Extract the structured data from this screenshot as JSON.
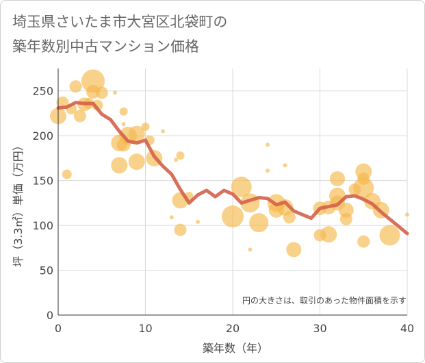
{
  "chart_data": {
    "type": "scatter",
    "title_line1": "埼玉県さいたま市大宮区北袋町の",
    "title_line2": "築年数別中古マンション価格",
    "xlabel": "築年数（年）",
    "ylabel": "坪（3.3㎡）単価（万円）",
    "note": "円の大きさは、取引のあった物件面積を示す",
    "xlim": [
      0,
      40
    ],
    "ylim": [
      0,
      275
    ],
    "x_ticks": [
      0,
      10,
      20,
      30,
      40
    ],
    "y_ticks": [
      0,
      50,
      100,
      150,
      200,
      250
    ],
    "grid": true,
    "colors": {
      "bubble": "#f5b94d",
      "line": "#d4604a"
    },
    "bubbles": [
      {
        "x": 0,
        "y": 222,
        "s": 12
      },
      {
        "x": 0.5,
        "y": 237,
        "s": 9
      },
      {
        "x": 1,
        "y": 157,
        "s": 7
      },
      {
        "x": 1.5,
        "y": 230,
        "s": 8
      },
      {
        "x": 2,
        "y": 255,
        "s": 9
      },
      {
        "x": 2.5,
        "y": 222,
        "s": 9
      },
      {
        "x": 3,
        "y": 235,
        "s": 10
      },
      {
        "x": 3.5,
        "y": 236,
        "s": 8
      },
      {
        "x": 4,
        "y": 261,
        "s": 17
      },
      {
        "x": 4,
        "y": 249,
        "s": 10
      },
      {
        "x": 4.5,
        "y": 234,
        "s": 8
      },
      {
        "x": 5,
        "y": 248,
        "s": 9
      },
      {
        "x": 6.5,
        "y": 248,
        "s": 3
      },
      {
        "x": 7.5,
        "y": 227,
        "s": 6
      },
      {
        "x": 7.5,
        "y": 213,
        "s": 3
      },
      {
        "x": 7,
        "y": 192,
        "s": 12
      },
      {
        "x": 7,
        "y": 167,
        "s": 12
      },
      {
        "x": 7.5,
        "y": 190,
        "s": 10
      },
      {
        "x": 8,
        "y": 200,
        "s": 13
      },
      {
        "x": 9,
        "y": 202,
        "s": 12
      },
      {
        "x": 9,
        "y": 171,
        "s": 12
      },
      {
        "x": 10,
        "y": 210,
        "s": 6
      },
      {
        "x": 10.5,
        "y": 195,
        "s": 7
      },
      {
        "x": 11,
        "y": 175,
        "s": 12
      },
      {
        "x": 12,
        "y": 205,
        "s": 3
      },
      {
        "x": 13.5,
        "y": 173,
        "s": 3
      },
      {
        "x": 14,
        "y": 178,
        "s": 6
      },
      {
        "x": 14,
        "y": 128,
        "s": 12
      },
      {
        "x": 14,
        "y": 95,
        "s": 9
      },
      {
        "x": 15,
        "y": 133,
        "s": 6
      },
      {
        "x": 13,
        "y": 109,
        "s": 3
      },
      {
        "x": 16,
        "y": 104,
        "s": 3
      },
      {
        "x": 20,
        "y": 110,
        "s": 16
      },
      {
        "x": 21,
        "y": 143,
        "s": 15
      },
      {
        "x": 22,
        "y": 125,
        "s": 14
      },
      {
        "x": 22,
        "y": 73,
        "s": 3
      },
      {
        "x": 23,
        "y": 103,
        "s": 14
      },
      {
        "x": 24,
        "y": 190,
        "s": 3
      },
      {
        "x": 24,
        "y": 161,
        "s": 3
      },
      {
        "x": 25,
        "y": 125,
        "s": 13
      },
      {
        "x": 25,
        "y": 117,
        "s": 11
      },
      {
        "x": 26,
        "y": 167,
        "s": 3
      },
      {
        "x": 26,
        "y": 120,
        "s": 12
      },
      {
        "x": 26.5,
        "y": 109,
        "s": 9
      },
      {
        "x": 27,
        "y": 73,
        "s": 11
      },
      {
        "x": 30,
        "y": 119,
        "s": 10
      },
      {
        "x": 30,
        "y": 89,
        "s": 9
      },
      {
        "x": 31,
        "y": 90,
        "s": 12
      },
      {
        "x": 31,
        "y": 120,
        "s": 10
      },
      {
        "x": 32,
        "y": 152,
        "s": 11
      },
      {
        "x": 32,
        "y": 133,
        "s": 12
      },
      {
        "x": 32,
        "y": 125,
        "s": 11
      },
      {
        "x": 33,
        "y": 117,
        "s": 11
      },
      {
        "x": 33,
        "y": 107,
        "s": 9
      },
      {
        "x": 34,
        "y": 140,
        "s": 9
      },
      {
        "x": 35,
        "y": 160,
        "s": 12
      },
      {
        "x": 35,
        "y": 152,
        "s": 9
      },
      {
        "x": 35,
        "y": 142,
        "s": 15
      },
      {
        "x": 35,
        "y": 82,
        "s": 9
      },
      {
        "x": 36,
        "y": 127,
        "s": 12
      },
      {
        "x": 37,
        "y": 117,
        "s": 12
      },
      {
        "x": 38,
        "y": 89,
        "s": 15
      },
      {
        "x": 40,
        "y": 112,
        "s": 3
      }
    ],
    "series": [
      {
        "x": [
          0,
          1,
          2,
          3,
          4,
          5,
          6,
          7,
          8,
          9,
          10,
          11,
          12,
          13,
          14,
          15,
          16,
          17,
          18,
          19,
          20,
          21,
          22,
          23,
          24,
          25,
          26,
          27,
          28,
          29,
          30,
          31,
          32,
          33,
          34,
          35,
          36,
          37,
          38,
          39,
          40
        ],
        "values": [
          231,
          232,
          237,
          236,
          236,
          224,
          218,
          205,
          194,
          192,
          195,
          177,
          166,
          157,
          140,
          125,
          134,
          139,
          132,
          139,
          135,
          125,
          128,
          131,
          130,
          123,
          126,
          116,
          112,
          108,
          119,
          121,
          123,
          132,
          133,
          129,
          124,
          115,
          107,
          99,
          91
        ]
      }
    ]
  }
}
